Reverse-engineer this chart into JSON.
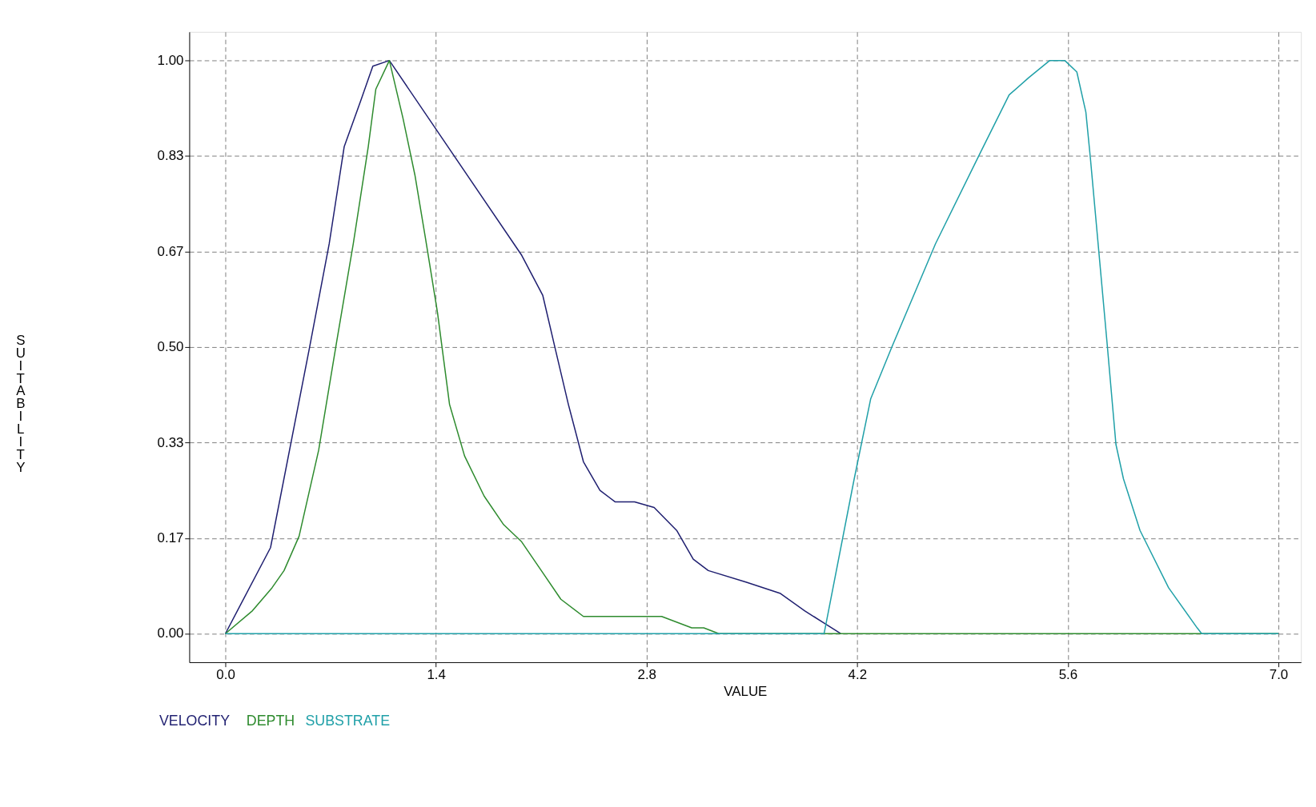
{
  "chart_data": {
    "type": "line",
    "xlabel": "VALUE",
    "ylabel": "SUITABILITY",
    "xlim": [
      -0.24,
      7.15
    ],
    "ylim": [
      -0.05,
      1.05
    ],
    "xticks": [
      {
        "value": 0,
        "label": "0.0"
      },
      1.4,
      2.8,
      4.2,
      5.6,
      {
        "value": 7,
        "label": "7.0"
      }
    ],
    "yticks": [
      {
        "value": 0,
        "label": "0.00"
      },
      {
        "value": 0.1667,
        "label": "0.17"
      },
      {
        "value": 0.3333,
        "label": "0.33"
      },
      {
        "value": 0.5,
        "label": "0.50"
      },
      {
        "value": 0.6667,
        "label": "0.67"
      },
      {
        "value": 0.8333,
        "label": "0.83"
      },
      {
        "value": 1,
        "label": "1.00"
      }
    ],
    "grid": true,
    "legend": "bottom left",
    "marker": "none",
    "line_style": "solid",
    "series": [
      {
        "name": "VELOCITY",
        "color": "#1f1f70",
        "x": [
          0,
          0.3,
          0.56,
          0.69,
          0.79,
          0.9,
          0.98,
          1.09,
          1.97,
          2.11,
          2.19,
          2.28,
          2.38,
          2.49,
          2.59,
          2.72,
          2.85,
          3.0,
          3.11,
          3.21,
          3.46,
          3.69,
          3.85,
          3.97,
          4.09
        ],
        "values": [
          0,
          0.15,
          0.5,
          0.68,
          0.85,
          0.93,
          0.99,
          1.0,
          0.66,
          0.59,
          0.5,
          0.4,
          0.3,
          0.25,
          0.23,
          0.23,
          0.22,
          0.18,
          0.13,
          0.11,
          0.09,
          0.07,
          0.04,
          0.02,
          0
        ]
      },
      {
        "name": "DEPTH",
        "color": "#2e8b2e",
        "x": [
          0,
          0.18,
          0.31,
          0.39,
          0.49,
          0.62,
          0.74,
          0.85,
          0.95,
          1.0,
          1.09,
          1.18,
          1.26,
          1.33,
          1.41,
          1.49,
          1.59,
          1.72,
          1.85,
          1.97,
          2.1,
          2.23,
          2.38,
          2.9,
          3.1,
          3.18,
          3.28,
          7.0
        ],
        "values": [
          0,
          0.04,
          0.08,
          0.11,
          0.17,
          0.32,
          0.51,
          0.68,
          0.85,
          0.95,
          1.0,
          0.9,
          0.8,
          0.69,
          0.56,
          0.4,
          0.31,
          0.24,
          0.19,
          0.16,
          0.11,
          0.06,
          0.03,
          0.03,
          0.01,
          0.01,
          0,
          0
        ]
      },
      {
        "name": "SUBSTRATE",
        "color": "#20a0a8",
        "x": [
          0,
          3.98,
          4.18,
          4.29,
          4.43,
          4.72,
          5.02,
          5.21,
          5.34,
          5.48,
          5.58,
          5.66,
          5.72,
          5.75,
          5.86,
          5.92,
          5.97,
          6.08,
          6.27,
          6.46,
          6.49,
          7.0
        ],
        "values": [
          0,
          0,
          0.27,
          0.41,
          0.5,
          0.68,
          0.84,
          0.94,
          0.97,
          1.0,
          1.0,
          0.98,
          0.91,
          0.83,
          0.51,
          0.33,
          0.27,
          0.18,
          0.08,
          0.01,
          0,
          0
        ]
      }
    ]
  }
}
